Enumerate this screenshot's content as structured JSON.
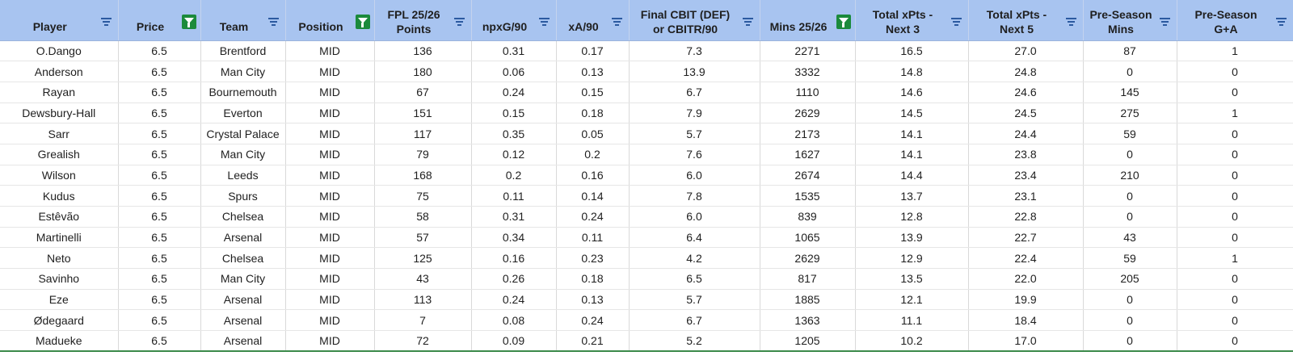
{
  "columns": [
    {
      "label": "Player",
      "filter_active": false
    },
    {
      "label": "Price",
      "filter_active": true
    },
    {
      "label": "Team",
      "filter_active": false
    },
    {
      "label": "Position",
      "filter_active": true
    },
    {
      "label": "FPL 25/26\nPoints",
      "filter_active": false
    },
    {
      "label": "npxG/90",
      "filter_active": false
    },
    {
      "label": "xA/90",
      "filter_active": false
    },
    {
      "label": "Final CBIT (DEF)\nor CBITR/90",
      "filter_active": false
    },
    {
      "label": "Mins 25/26",
      "filter_active": true
    },
    {
      "label": "Total xPts -\nNext 3",
      "filter_active": false
    },
    {
      "label": "Total xPts -\nNext 5",
      "filter_active": false
    },
    {
      "label": "Pre-Season\nMins",
      "filter_active": false
    },
    {
      "label": "Pre-Season\nG+A",
      "filter_active": false
    }
  ],
  "rows": [
    [
      "O.Dango",
      "6.5",
      "Brentford",
      "MID",
      "136",
      "0.31",
      "0.17",
      "7.3",
      "2271",
      "16.5",
      "27.0",
      "87",
      "1"
    ],
    [
      "Anderson",
      "6.5",
      "Man City",
      "MID",
      "180",
      "0.06",
      "0.13",
      "13.9",
      "3332",
      "14.8",
      "24.8",
      "0",
      "0"
    ],
    [
      "Rayan",
      "6.5",
      "Bournemouth",
      "MID",
      "67",
      "0.24",
      "0.15",
      "6.7",
      "1110",
      "14.6",
      "24.6",
      "145",
      "0"
    ],
    [
      "Dewsbury-Hall",
      "6.5",
      "Everton",
      "MID",
      "151",
      "0.15",
      "0.18",
      "7.9",
      "2629",
      "14.5",
      "24.5",
      "275",
      "1"
    ],
    [
      "Sarr",
      "6.5",
      "Crystal Palace",
      "MID",
      "117",
      "0.35",
      "0.05",
      "5.7",
      "2173",
      "14.1",
      "24.4",
      "59",
      "0"
    ],
    [
      "Grealish",
      "6.5",
      "Man City",
      "MID",
      "79",
      "0.12",
      "0.2",
      "7.6",
      "1627",
      "14.1",
      "23.8",
      "0",
      "0"
    ],
    [
      "Wilson",
      "6.5",
      "Leeds",
      "MID",
      "168",
      "0.2",
      "0.16",
      "6.0",
      "2674",
      "14.4",
      "23.4",
      "210",
      "0"
    ],
    [
      "Kudus",
      "6.5",
      "Spurs",
      "MID",
      "75",
      "0.11",
      "0.14",
      "7.8",
      "1535",
      "13.7",
      "23.1",
      "0",
      "0"
    ],
    [
      "Estêvão",
      "6.5",
      "Chelsea",
      "MID",
      "58",
      "0.31",
      "0.24",
      "6.0",
      "839",
      "12.8",
      "22.8",
      "0",
      "0"
    ],
    [
      "Martinelli",
      "6.5",
      "Arsenal",
      "MID",
      "57",
      "0.34",
      "0.11",
      "6.4",
      "1065",
      "13.9",
      "22.7",
      "43",
      "0"
    ],
    [
      "Neto",
      "6.5",
      "Chelsea",
      "MID",
      "125",
      "0.16",
      "0.23",
      "4.2",
      "2629",
      "12.9",
      "22.4",
      "59",
      "1"
    ],
    [
      "Savinho",
      "6.5",
      "Man City",
      "MID",
      "43",
      "0.26",
      "0.18",
      "6.5",
      "817",
      "13.5",
      "22.0",
      "205",
      "0"
    ],
    [
      "Eze",
      "6.5",
      "Arsenal",
      "MID",
      "113",
      "0.24",
      "0.13",
      "5.7",
      "1885",
      "12.1",
      "19.9",
      "0",
      "0"
    ],
    [
      "Ødegaard",
      "6.5",
      "Arsenal",
      "MID",
      "7",
      "0.08",
      "0.24",
      "6.7",
      "1363",
      "11.1",
      "18.4",
      "0",
      "0"
    ],
    [
      "Madueke",
      "6.5",
      "Arsenal",
      "MID",
      "72",
      "0.09",
      "0.21",
      "5.2",
      "1205",
      "10.2",
      "17.0",
      "0",
      "0"
    ]
  ],
  "colors": {
    "header_bg": "#a8c4f0",
    "filter_active": "#1b8a3c",
    "filter_icon": "#2c5aa0"
  }
}
